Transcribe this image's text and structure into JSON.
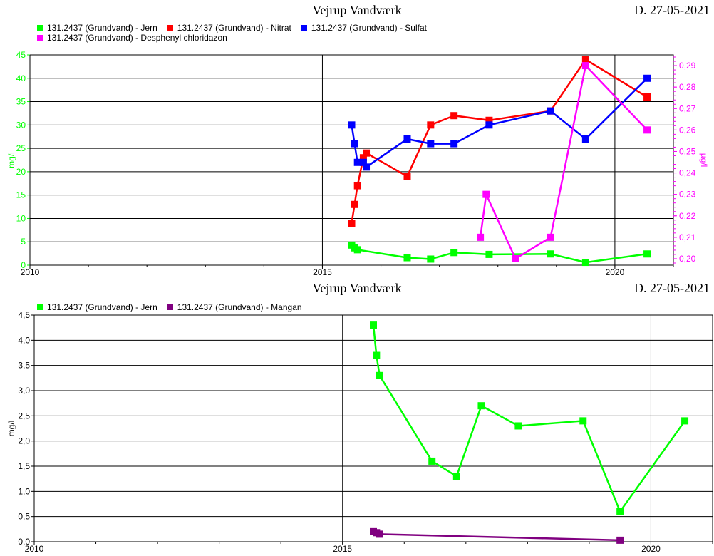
{
  "charts": [
    {
      "title": "Vejrup Vandværk",
      "date": "D. 27-05-2021",
      "chart_data": {
        "type": "line",
        "title": "Vejrup Vandværk",
        "x_ticks": [
          "2010",
          "2015",
          "2020"
        ],
        "xlim": [
          2010,
          2021
        ],
        "ylabel": "mg/l",
        "ylim": [
          0,
          45
        ],
        "y_ticks": [
          "0",
          "5",
          "10",
          "15",
          "20",
          "25",
          "30",
          "35",
          "40",
          "45"
        ],
        "y2label": "µg/l",
        "y2lim": [
          0.197,
          0.295
        ],
        "y2_ticks": [
          "0,20",
          "0,21",
          "0,22",
          "0,23",
          "0,24",
          "0,25",
          "0,26",
          "0,27",
          "0,28",
          "0,29"
        ],
        "grid": true,
        "legend": "top-left",
        "series": [
          {
            "name": "131.2437 (Grundvand) - Jern",
            "color": "#00ff00",
            "axis": "left",
            "x": [
              2015.5,
              2015.55,
              2015.6,
              2016.45,
              2016.85,
              2017.25,
              2017.85,
              2018.9,
              2019.5,
              2020.55
            ],
            "y": [
              4.3,
              3.7,
              3.3,
              1.6,
              1.3,
              2.7,
              2.3,
              2.4,
              0.6,
              2.4
            ]
          },
          {
            "name": "131.2437 (Grundvand) - Nitrat",
            "color": "#ff0000",
            "axis": "left",
            "x": [
              2015.5,
              2015.55,
              2015.6,
              2015.7,
              2015.75,
              2016.45,
              2016.85,
              2017.25,
              2017.85,
              2018.9,
              2019.5,
              2020.55
            ],
            "y": [
              9,
              13,
              17,
              23,
              24,
              19,
              30,
              32,
              31,
              33,
              44,
              36
            ]
          },
          {
            "name": "131.2437 (Grundvand) - Sulfat",
            "color": "#0000ff",
            "axis": "left",
            "x": [
              2015.5,
              2015.55,
              2015.6,
              2015.7,
              2015.75,
              2016.45,
              2016.85,
              2017.25,
              2017.85,
              2018.9,
              2019.5,
              2020.55
            ],
            "y": [
              30,
              26,
              22,
              22,
              21,
              27,
              26,
              26,
              30,
              33,
              27,
              40
            ]
          },
          {
            "name": "131.2437 (Grundvand) - Desphenyl chloridazon",
            "color": "#ff00ff",
            "axis": "right",
            "x": [
              2017.7,
              2017.8,
              2018.3,
              2018.9,
              2019.5,
              2020.55
            ],
            "y": [
              0.21,
              0.23,
              0.2,
              0.21,
              0.29,
              0.26
            ]
          }
        ]
      }
    },
    {
      "title": "Vejrup Vandværk",
      "date": "D. 27-05-2021",
      "chart_data": {
        "type": "line",
        "title": "Vejrup Vandværk",
        "x_ticks": [
          "2010",
          "2015",
          "2020"
        ],
        "xlim": [
          2010,
          2021
        ],
        "ylabel": "mg/l",
        "ylim": [
          0,
          4.5
        ],
        "y_ticks": [
          "0,0",
          "0,5",
          "1,0",
          "1,5",
          "2,0",
          "2,5",
          "3,0",
          "3,5",
          "4,0",
          "4,5"
        ],
        "grid": true,
        "legend": "top-left",
        "series": [
          {
            "name": "131.2437 (Grundvand) - Jern",
            "color": "#00ff00",
            "axis": "left",
            "x": [
              2015.5,
              2015.55,
              2015.6,
              2016.45,
              2016.85,
              2017.25,
              2017.85,
              2018.9,
              2019.5,
              2020.55
            ],
            "y": [
              4.3,
              3.7,
              3.3,
              1.6,
              1.3,
              2.7,
              2.3,
              2.4,
              0.6,
              2.4
            ]
          },
          {
            "name": "131.2437 (Grundvand) - Mangan",
            "color": "#800080",
            "axis": "left",
            "x": [
              2015.5,
              2015.55,
              2015.6,
              2019.5
            ],
            "y": [
              0.2,
              0.18,
              0.15,
              0.03
            ]
          }
        ]
      }
    }
  ]
}
